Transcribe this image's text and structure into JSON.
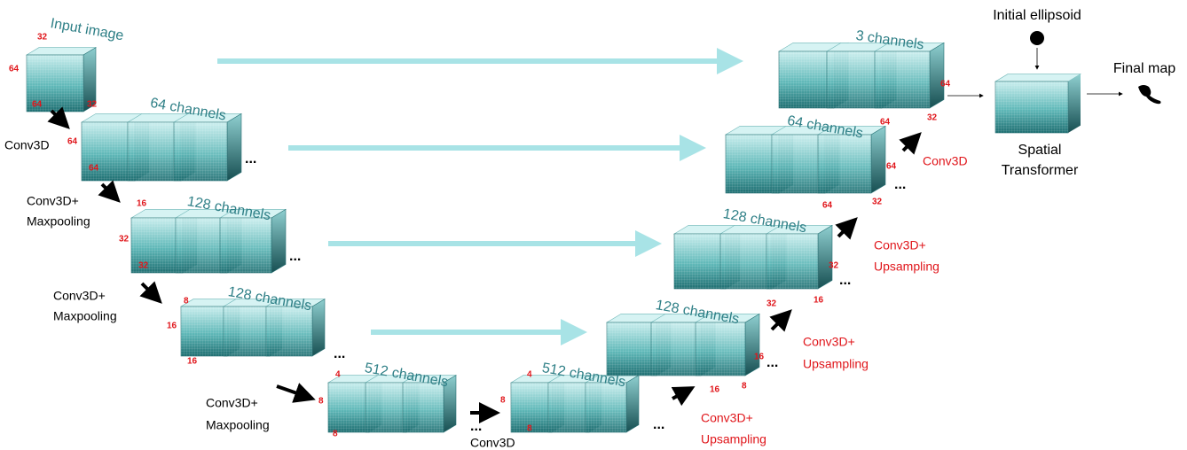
{
  "blocks": [
    {
      "label": "Input image",
      "dims": [
        "32",
        "64",
        "64",
        "32"
      ]
    },
    {
      "label": "64 channels",
      "dims": [
        "64",
        "64"
      ]
    },
    {
      "label": "128 channels",
      "dims": [
        "16",
        "32",
        "32"
      ]
    },
    {
      "label": "128 channels",
      "dims": [
        "8",
        "16",
        "16"
      ]
    },
    {
      "label": "512 channels",
      "dims": [
        "4",
        "8",
        "8"
      ]
    },
    {
      "label": "512 channels",
      "dims": [
        "4",
        "8",
        "8"
      ]
    },
    {
      "label": "128 channels",
      "dims": [
        "16",
        "16",
        "8"
      ]
    },
    {
      "label": "128 channels",
      "dims": [
        "32",
        "32",
        "16"
      ]
    },
    {
      "label": "64 channels",
      "dims": [
        "64",
        "64",
        "32"
      ]
    },
    {
      "label": "3 channels",
      "dims": [
        "64",
        "64",
        "32"
      ]
    }
  ],
  "operations": [
    {
      "lines": [
        "Conv3D"
      ]
    },
    {
      "lines": [
        "Conv3D+",
        "Maxpooling"
      ]
    },
    {
      "lines": [
        "Conv3D+",
        "Maxpooling"
      ]
    },
    {
      "lines": [
        "Conv3D+",
        "Maxpooling"
      ]
    },
    {
      "lines": [
        "Conv3D"
      ]
    },
    {
      "lines": [
        "Conv3D+",
        "Upsampling"
      ]
    },
    {
      "lines": [
        "Conv3D+",
        "Upsampling"
      ]
    },
    {
      "lines": [
        "Conv3D+",
        "Upsampling"
      ]
    },
    {
      "lines": [
        "Conv3D"
      ]
    }
  ],
  "continuation": "...",
  "transformer": {
    "input": "Initial ellipsoid",
    "name": [
      "Spatial",
      "Transformer"
    ],
    "output": "Final map"
  }
}
